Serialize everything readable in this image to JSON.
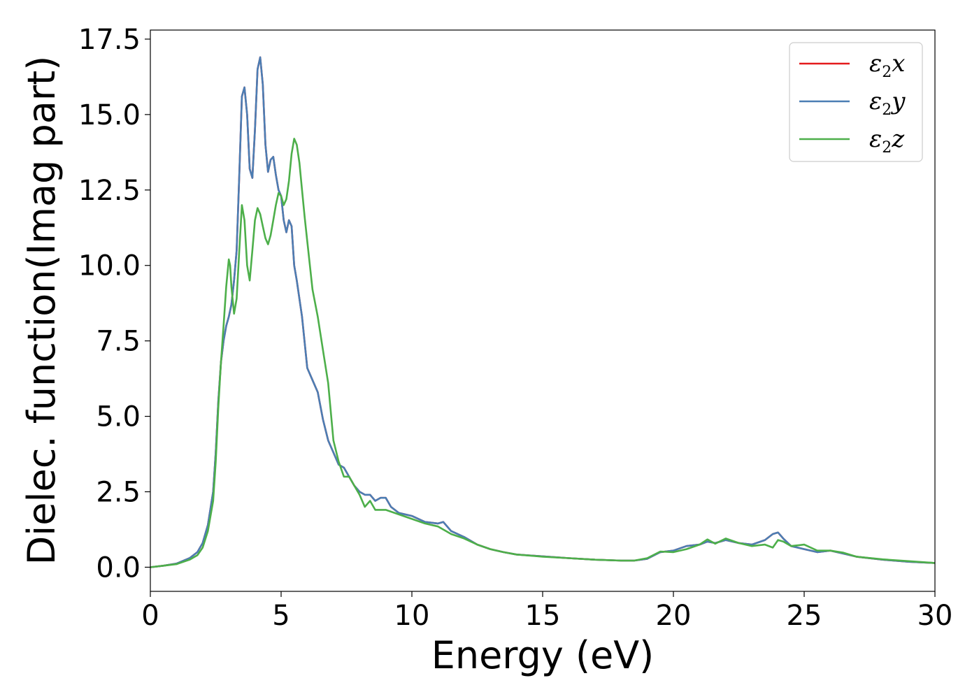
{
  "chart_data": {
    "type": "line",
    "title": "",
    "xlabel": "Energy (eV)",
    "ylabel": "Dielec. function(Imag part)",
    "xlim": [
      0,
      30
    ],
    "ylim": [
      -0.8,
      17.8
    ],
    "xticks": [
      0,
      5,
      10,
      15,
      20,
      25,
      30
    ],
    "xtick_labels": [
      "0",
      "5",
      "10",
      "15",
      "20",
      "25",
      "30"
    ],
    "yticks": [
      0.0,
      2.5,
      5.0,
      7.5,
      10.0,
      12.5,
      15.0,
      17.5
    ],
    "ytick_labels": [
      "0.0",
      "2.5",
      "5.0",
      "7.5",
      "10.0",
      "12.5",
      "15.0",
      "17.5"
    ],
    "grid": false,
    "legend_position": "top-right",
    "series": [
      {
        "name": "ε2x",
        "name_base": "ε",
        "name_sub": "2",
        "name_suffix": "x",
        "color": "#e41a1c",
        "x": [
          0,
          0.5,
          1,
          1.5,
          1.8,
          2.0,
          2.2,
          2.4,
          2.5,
          2.6,
          2.7,
          2.8,
          2.9,
          3.0,
          3.1,
          3.2,
          3.3,
          3.4,
          3.5,
          3.6,
          3.7,
          3.8,
          3.9,
          4.0,
          4.1,
          4.2,
          4.3,
          4.4,
          4.5,
          4.6,
          4.7,
          4.8,
          4.9,
          5.0,
          5.1,
          5.2,
          5.3,
          5.4,
          5.5,
          5.6,
          5.8,
          6.0,
          6.2,
          6.4,
          6.6,
          6.8,
          7.0,
          7.2,
          7.4,
          7.6,
          7.8,
          8.0,
          8.2,
          8.4,
          8.6,
          8.8,
          9.0,
          9.2,
          9.5,
          10.0,
          10.5,
          11.0,
          11.2,
          11.5,
          12.0,
          12.5,
          13.0,
          13.5,
          14.0,
          15.0,
          16.0,
          17.0,
          18.0,
          18.5,
          19.0,
          19.5,
          20.0,
          20.5,
          21.0,
          21.3,
          21.6,
          22.0,
          22.5,
          23.0,
          23.5,
          23.8,
          24.0,
          24.2,
          24.5,
          25.0,
          25.5,
          26.0,
          26.5,
          27.0,
          28.0,
          29.0,
          30.0
        ],
        "y": [
          0,
          0.05,
          0.12,
          0.3,
          0.5,
          0.8,
          1.4,
          2.5,
          3.8,
          5.5,
          6.8,
          7.5,
          8.0,
          8.3,
          8.7,
          9.5,
          10.5,
          13.0,
          15.6,
          15.9,
          15.0,
          13.2,
          12.9,
          14.5,
          16.5,
          16.9,
          16.0,
          14.0,
          13.1,
          13.5,
          13.6,
          13.0,
          12.5,
          12.3,
          11.5,
          11.1,
          11.5,
          11.3,
          10.0,
          9.5,
          8.3,
          6.6,
          6.2,
          5.8,
          4.9,
          4.2,
          3.8,
          3.4,
          3.3,
          3.0,
          2.7,
          2.5,
          2.4,
          2.4,
          2.2,
          2.3,
          2.3,
          2.0,
          1.8,
          1.7,
          1.5,
          1.45,
          1.5,
          1.2,
          1.0,
          0.75,
          0.6,
          0.5,
          0.42,
          0.36,
          0.3,
          0.25,
          0.22,
          0.22,
          0.28,
          0.5,
          0.55,
          0.7,
          0.75,
          0.85,
          0.8,
          0.9,
          0.8,
          0.75,
          0.9,
          1.1,
          1.15,
          0.95,
          0.7,
          0.6,
          0.5,
          0.55,
          0.45,
          0.35,
          0.25,
          0.18,
          0.14
        ]
      },
      {
        "name": "ε2y",
        "name_base": "ε",
        "name_sub": "2",
        "name_suffix": "y",
        "color": "#4b7eb4",
        "x": [
          0,
          0.5,
          1,
          1.5,
          1.8,
          2.0,
          2.2,
          2.4,
          2.5,
          2.6,
          2.7,
          2.8,
          2.9,
          3.0,
          3.1,
          3.2,
          3.3,
          3.4,
          3.5,
          3.6,
          3.7,
          3.8,
          3.9,
          4.0,
          4.1,
          4.2,
          4.3,
          4.4,
          4.5,
          4.6,
          4.7,
          4.8,
          4.9,
          5.0,
          5.1,
          5.2,
          5.3,
          5.4,
          5.5,
          5.6,
          5.8,
          6.0,
          6.2,
          6.4,
          6.6,
          6.8,
          7.0,
          7.2,
          7.4,
          7.6,
          7.8,
          8.0,
          8.2,
          8.4,
          8.6,
          8.8,
          9.0,
          9.2,
          9.5,
          10.0,
          10.5,
          11.0,
          11.2,
          11.5,
          12.0,
          12.5,
          13.0,
          13.5,
          14.0,
          15.0,
          16.0,
          17.0,
          18.0,
          18.5,
          19.0,
          19.5,
          20.0,
          20.5,
          21.0,
          21.3,
          21.6,
          22.0,
          22.5,
          23.0,
          23.5,
          23.8,
          24.0,
          24.2,
          24.5,
          25.0,
          25.5,
          26.0,
          26.5,
          27.0,
          28.0,
          29.0,
          30.0
        ],
        "y": [
          0,
          0.05,
          0.12,
          0.3,
          0.5,
          0.8,
          1.4,
          2.5,
          3.8,
          5.5,
          6.8,
          7.5,
          8.0,
          8.3,
          8.7,
          9.5,
          10.5,
          13.0,
          15.6,
          15.9,
          15.0,
          13.2,
          12.9,
          14.5,
          16.5,
          16.9,
          16.0,
          14.0,
          13.1,
          13.5,
          13.6,
          13.0,
          12.5,
          12.3,
          11.5,
          11.1,
          11.5,
          11.3,
          10.0,
          9.5,
          8.3,
          6.6,
          6.2,
          5.8,
          4.9,
          4.2,
          3.8,
          3.4,
          3.3,
          3.0,
          2.7,
          2.5,
          2.4,
          2.4,
          2.2,
          2.3,
          2.3,
          2.0,
          1.8,
          1.7,
          1.5,
          1.45,
          1.5,
          1.2,
          1.0,
          0.75,
          0.6,
          0.5,
          0.42,
          0.36,
          0.3,
          0.25,
          0.22,
          0.22,
          0.28,
          0.5,
          0.55,
          0.7,
          0.75,
          0.85,
          0.8,
          0.9,
          0.8,
          0.75,
          0.9,
          1.1,
          1.15,
          0.95,
          0.7,
          0.6,
          0.5,
          0.55,
          0.45,
          0.35,
          0.25,
          0.18,
          0.14
        ]
      },
      {
        "name": "ε2z",
        "name_base": "ε",
        "name_sub": "2",
        "name_suffix": "z",
        "color": "#4daf4a",
        "x": [
          0,
          0.5,
          1,
          1.5,
          1.8,
          2.0,
          2.2,
          2.4,
          2.5,
          2.6,
          2.7,
          2.8,
          2.9,
          3.0,
          3.05,
          3.1,
          3.2,
          3.3,
          3.4,
          3.5,
          3.6,
          3.7,
          3.8,
          3.9,
          4.0,
          4.1,
          4.2,
          4.3,
          4.4,
          4.5,
          4.6,
          4.7,
          4.8,
          4.9,
          5.0,
          5.1,
          5.2,
          5.3,
          5.4,
          5.5,
          5.6,
          5.7,
          5.8,
          5.9,
          6.0,
          6.2,
          6.4,
          6.6,
          6.8,
          7.0,
          7.2,
          7.4,
          7.6,
          7.8,
          8.0,
          8.2,
          8.4,
          8.6,
          8.8,
          9.0,
          9.5,
          10.0,
          10.5,
          11.0,
          11.5,
          12.0,
          12.5,
          13.0,
          13.5,
          14.0,
          15.0,
          16.0,
          17.0,
          18.0,
          18.5,
          19.0,
          19.5,
          20.0,
          20.5,
          21.0,
          21.3,
          21.6,
          22.0,
          22.5,
          23.0,
          23.5,
          23.8,
          24.0,
          24.2,
          24.5,
          25.0,
          25.5,
          26.0,
          26.5,
          27.0,
          28.0,
          29.0,
          30.0
        ],
        "y": [
          0,
          0.05,
          0.1,
          0.25,
          0.4,
          0.65,
          1.2,
          2.2,
          3.5,
          5.3,
          6.8,
          8.0,
          9.3,
          10.2,
          10.0,
          9.3,
          8.4,
          8.9,
          10.5,
          12.0,
          11.5,
          10.0,
          9.5,
          10.5,
          11.5,
          11.9,
          11.7,
          11.3,
          10.9,
          10.7,
          11.0,
          11.5,
          12.0,
          12.4,
          12.3,
          12.0,
          12.2,
          12.8,
          13.7,
          14.2,
          14.0,
          13.4,
          12.5,
          11.6,
          10.8,
          9.2,
          8.3,
          7.2,
          6.1,
          4.2,
          3.5,
          3.0,
          3.0,
          2.7,
          2.4,
          2.0,
          2.2,
          1.9,
          1.9,
          1.9,
          1.75,
          1.6,
          1.45,
          1.35,
          1.1,
          0.95,
          0.75,
          0.6,
          0.5,
          0.42,
          0.35,
          0.3,
          0.25,
          0.22,
          0.22,
          0.3,
          0.52,
          0.5,
          0.6,
          0.75,
          0.92,
          0.78,
          0.95,
          0.8,
          0.7,
          0.75,
          0.65,
          0.9,
          0.85,
          0.7,
          0.75,
          0.55,
          0.55,
          0.48,
          0.35,
          0.26,
          0.2,
          0.14
        ]
      }
    ]
  }
}
